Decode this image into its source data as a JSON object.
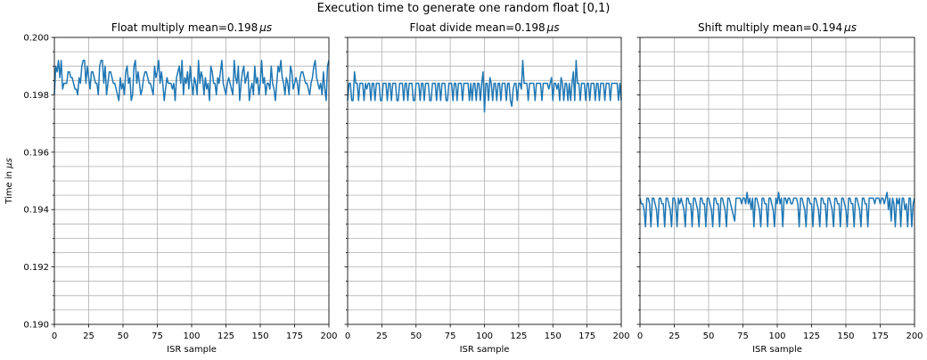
{
  "chart_data": [
    {
      "type": "line",
      "suptitle": "Execution time to generate one random float [0,1)",
      "title": "Float multiply mean=0.198",
      "title_unit": "μs",
      "xlabel": "ISR sample",
      "ylabel": "Time in ",
      "ylabel_unit": "μs",
      "xlim": [
        0,
        200
      ],
      "ylim": [
        0.19,
        0.2
      ],
      "xticks": [
        "0",
        "25",
        "50",
        "75",
        "100",
        "125",
        "150",
        "175",
        "200"
      ],
      "yticks": [
        "0.190",
        "0.192",
        "0.194",
        "0.196",
        "0.198",
        "0.200"
      ],
      "grid": true,
      "color": "#1f77b4",
      "values": [
        0.198,
        0.199,
        0.1988,
        0.1992,
        0.1986,
        0.1992,
        0.1982,
        0.1984,
        0.1984,
        0.1984,
        0.1988,
        0.1988,
        0.1986,
        0.1986,
        0.1984,
        0.1982,
        0.1982,
        0.198,
        0.1986,
        0.1984,
        0.199,
        0.1992,
        0.1992,
        0.1984,
        0.199,
        0.1986,
        0.1982,
        0.1988,
        0.1988,
        0.1986,
        0.1984,
        0.1984,
        0.198,
        0.199,
        0.1992,
        0.1992,
        0.1984,
        0.199,
        0.198,
        0.1984,
        0.1988,
        0.1988,
        0.1986,
        0.1984,
        0.1984,
        0.1982,
        0.198,
        0.1978,
        0.1986,
        0.1982,
        0.1984,
        0.198,
        0.1988,
        0.199,
        0.1984,
        0.1986,
        0.1978,
        0.198,
        0.199,
        0.1992,
        0.1984,
        0.1988,
        0.1984,
        0.198,
        0.1982,
        0.1986,
        0.1988,
        0.1988,
        0.1986,
        0.1984,
        0.1984,
        0.1982,
        0.198,
        0.199,
        0.1986,
        0.1988,
        0.1992,
        0.1984,
        0.1988,
        0.1984,
        0.1978,
        0.1982,
        0.1986,
        0.1984,
        0.1984,
        0.1984,
        0.1982,
        0.1984,
        0.1978,
        0.1986,
        0.1988,
        0.199,
        0.1984,
        0.1992,
        0.198,
        0.1986,
        0.1984,
        0.1988,
        0.1982,
        0.199,
        0.1984,
        0.198,
        0.1986,
        0.1984,
        0.198,
        0.1992,
        0.1984,
        0.1988,
        0.1986,
        0.198,
        0.1986,
        0.1982,
        0.1984,
        0.1978,
        0.199,
        0.1988,
        0.1984,
        0.1984,
        0.198,
        0.1986,
        0.1984,
        0.1988,
        0.1992,
        0.1984,
        0.1982,
        0.198,
        0.1984,
        0.1986,
        0.1984,
        0.1982,
        0.198,
        0.1992,
        0.1986,
        0.1984,
        0.199,
        0.1978,
        0.1984,
        0.1988,
        0.199,
        0.1984,
        0.1986,
        0.1988,
        0.1978,
        0.1982,
        0.1984,
        0.198,
        0.199,
        0.1984,
        0.1986,
        0.198,
        0.1984,
        0.1992,
        0.1984,
        0.1986,
        0.198,
        0.1984,
        0.1984,
        0.1982,
        0.199,
        0.1984,
        0.1982,
        0.1978,
        0.1984,
        0.199,
        0.1988,
        0.1992,
        0.1986,
        0.1984,
        0.198,
        0.1986,
        0.1984,
        0.198,
        0.199,
        0.1988,
        0.1982,
        0.1984,
        0.1986,
        0.1984,
        0.198,
        0.1986,
        0.1988,
        0.1988,
        0.1986,
        0.1984,
        0.1984,
        0.1982,
        0.198,
        0.1984,
        0.1986,
        0.199,
        0.1992,
        0.1986,
        0.1984,
        0.1982,
        0.1984,
        0.198,
        0.1988,
        0.1982,
        0.1978,
        0.199,
        0.1992
      ]
    },
    {
      "type": "line",
      "title": "Float divide mean=0.198",
      "title_unit": "μs",
      "xlabel": "ISR sample",
      "xlim": [
        0,
        200
      ],
      "ylim": [
        0.19,
        0.2
      ],
      "xticks": [
        "0",
        "25",
        "50",
        "75",
        "100",
        "125",
        "150",
        "175",
        "200"
      ],
      "grid": true,
      "color": "#1f77b4",
      "values": [
        0.1978,
        0.1984,
        0.1984,
        0.1978,
        0.1978,
        0.1988,
        0.1984,
        0.1984,
        0.1978,
        0.1984,
        0.1984,
        0.1984,
        0.1978,
        0.1984,
        0.1982,
        0.1984,
        0.1984,
        0.1978,
        0.1984,
        0.1984,
        0.1978,
        0.1984,
        0.1984,
        0.1984,
        0.1978,
        0.1978,
        0.1984,
        0.1984,
        0.1984,
        0.1978,
        0.1984,
        0.1984,
        0.1978,
        0.1984,
        0.1984,
        0.1984,
        0.1978,
        0.1978,
        0.1984,
        0.1984,
        0.1984,
        0.1978,
        0.1984,
        0.1984,
        0.1978,
        0.1984,
        0.1984,
        0.1984,
        0.1978,
        0.1978,
        0.1984,
        0.1984,
        0.1984,
        0.1978,
        0.1984,
        0.1984,
        0.1978,
        0.1984,
        0.1984,
        0.1984,
        0.1978,
        0.1978,
        0.1984,
        0.1984,
        0.1984,
        0.1978,
        0.1984,
        0.1984,
        0.1978,
        0.1984,
        0.1984,
        0.1984,
        0.1978,
        0.1978,
        0.1984,
        0.1984,
        0.1984,
        0.1978,
        0.1984,
        0.1984,
        0.1978,
        0.1984,
        0.1984,
        0.1984,
        0.1978,
        0.1984,
        0.1984,
        0.1984,
        0.1984,
        0.1978,
        0.1984,
        0.1978,
        0.1984,
        0.1984,
        0.1978,
        0.1984,
        0.1984,
        0.1978,
        0.1984,
        0.1988,
        0.1974,
        0.1984,
        0.1984,
        0.1978,
        0.1986,
        0.1984,
        0.1978,
        0.1984,
        0.1984,
        0.1978,
        0.1984,
        0.1984,
        0.1978,
        0.1984,
        0.1984,
        0.1984,
        0.1978,
        0.1984,
        0.1984,
        0.1978,
        0.1976,
        0.1982,
        0.1984,
        0.1984,
        0.1978,
        0.1984,
        0.1984,
        0.1982,
        0.1992,
        0.1984,
        0.1984,
        0.1984,
        0.1978,
        0.1984,
        0.1984,
        0.1984,
        0.1984,
        0.1978,
        0.1984,
        0.1984,
        0.1984,
        0.1984,
        0.1978,
        0.1984,
        0.1984,
        0.1984,
        0.1984,
        0.1982,
        0.1984,
        0.1986,
        0.1978,
        0.1984,
        0.1984,
        0.1982,
        0.1984,
        0.1978,
        0.1986,
        0.1984,
        0.1978,
        0.1984,
        0.1984,
        0.1978,
        0.1984,
        0.1978,
        0.1984,
        0.1988,
        0.1978,
        0.1992,
        0.1984,
        0.1984,
        0.1978,
        0.1984,
        0.1984,
        0.1984,
        0.1978,
        0.1984,
        0.1984,
        0.1978,
        0.1984,
        0.1984,
        0.1984,
        0.1978,
        0.1984,
        0.1984,
        0.1978,
        0.1984,
        0.1984,
        0.1984,
        0.1978,
        0.1984,
        0.1984,
        0.1984,
        0.1978,
        0.1984,
        0.1984,
        0.1984,
        0.1984,
        0.1984,
        0.1978,
        0.1984,
        0.1978
      ]
    },
    {
      "type": "line",
      "title": "Shift multiply mean=0.194",
      "title_unit": "μs",
      "xlabel": "ISR sample",
      "xlim": [
        0,
        200
      ],
      "ylim": [
        0.19,
        0.2
      ],
      "xticks": [
        "0",
        "25",
        "50",
        "75",
        "100",
        "125",
        "150",
        "175",
        "200"
      ],
      "grid": true,
      "color": "#1f77b4",
      "values": [
        0.1944,
        0.1942,
        0.1942,
        0.194,
        0.1934,
        0.1944,
        0.1944,
        0.1942,
        0.1934,
        0.1944,
        0.1944,
        0.1942,
        0.194,
        0.1934,
        0.1944,
        0.1944,
        0.1942,
        0.1942,
        0.1934,
        0.1944,
        0.1944,
        0.1942,
        0.194,
        0.1934,
        0.1944,
        0.1944,
        0.1942,
        0.1934,
        0.1944,
        0.1942,
        0.1944,
        0.1942,
        0.194,
        0.1934,
        0.1944,
        0.1944,
        0.1942,
        0.1942,
        0.1934,
        0.1944,
        0.1944,
        0.1942,
        0.194,
        0.1934,
        0.1944,
        0.1944,
        0.1942,
        0.1942,
        0.1934,
        0.1944,
        0.1944,
        0.1942,
        0.194,
        0.1934,
        0.1944,
        0.1944,
        0.1942,
        0.1942,
        0.1934,
        0.1944,
        0.1944,
        0.1942,
        0.194,
        0.1934,
        0.1944,
        0.1944,
        0.1942,
        0.194,
        0.1938,
        0.1936,
        0.1944,
        0.1944,
        0.1944,
        0.1944,
        0.1942,
        0.1944,
        0.1944,
        0.1942,
        0.1946,
        0.1942,
        0.1944,
        0.194,
        0.1944,
        0.1934,
        0.1944,
        0.1944,
        0.1942,
        0.194,
        0.1934,
        0.1944,
        0.1944,
        0.1942,
        0.1942,
        0.1934,
        0.1944,
        0.1944,
        0.1942,
        0.194,
        0.1934,
        0.1944,
        0.1942,
        0.1946,
        0.1942,
        0.1944,
        0.1934,
        0.1944,
        0.1944,
        0.1942,
        0.1944,
        0.1944,
        0.1942,
        0.1942,
        0.1944,
        0.1944,
        0.1944,
        0.1942,
        0.1934,
        0.1944,
        0.1944,
        0.1942,
        0.194,
        0.1934,
        0.1944,
        0.1944,
        0.1942,
        0.1942,
        0.1934,
        0.1944,
        0.1944,
        0.1942,
        0.194,
        0.1934,
        0.1944,
        0.1944,
        0.1942,
        0.1942,
        0.1934,
        0.1944,
        0.1944,
        0.1942,
        0.194,
        0.1934,
        0.1944,
        0.1944,
        0.1942,
        0.1942,
        0.1934,
        0.1944,
        0.1944,
        0.1942,
        0.194,
        0.1934,
        0.1944,
        0.1944,
        0.1942,
        0.1942,
        0.1934,
        0.1944,
        0.1944,
        0.1942,
        0.194,
        0.1934,
        0.1944,
        0.1944,
        0.1942,
        0.1942,
        0.1934,
        0.1944,
        0.1944,
        0.1944,
        0.1944,
        0.1942,
        0.1944,
        0.1944,
        0.1944,
        0.1942,
        0.1944,
        0.1944,
        0.1942,
        0.1944,
        0.1946,
        0.194,
        0.1944,
        0.1936,
        0.1944,
        0.1942,
        0.1934,
        0.1944,
        0.1942,
        0.1944,
        0.1934,
        0.1944,
        0.1944,
        0.194,
        0.1942,
        0.1934,
        0.1944,
        0.1944,
        0.1934,
        0.1942,
        0.1944
      ]
    }
  ]
}
